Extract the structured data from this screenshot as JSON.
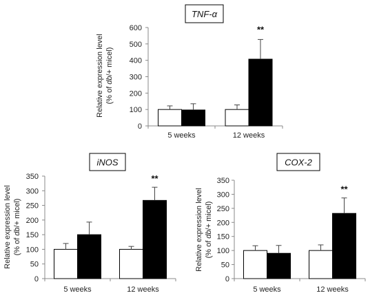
{
  "chart_data": [
    {
      "type": "bar",
      "title": "TNF-α",
      "ylabel_line1": "Relative expression level",
      "ylabel_line2_pre": "(% of ",
      "ylabel_line2_em": "db",
      "ylabel_line2_post": "/+ micel)",
      "ylim": [
        0,
        600
      ],
      "yticks": [
        "0",
        "100",
        "200",
        "300",
        "400",
        "500",
        "600"
      ],
      "categories": [
        "5 weeks",
        "12 weeks"
      ],
      "series": [
        {
          "fill": "#ffffff",
          "values": [
            100,
            100
          ],
          "errors": [
            22,
            28
          ]
        },
        {
          "fill": "#000000",
          "values": [
            97,
            407
          ],
          "errors": [
            38,
            120
          ]
        }
      ],
      "significance": [
        {
          "category": 1,
          "series": 1,
          "label": "**"
        }
      ]
    },
    {
      "type": "bar",
      "title": "iNOS",
      "ylabel_line1": "Relative expression level",
      "ylabel_line2_pre": "(% of ",
      "ylabel_line2_em": "db",
      "ylabel_line2_post": "/+ micel)",
      "ylim": [
        0,
        350
      ],
      "yticks": [
        "0",
        "50",
        "100",
        "150",
        "200",
        "250",
        "300",
        "350"
      ],
      "categories": [
        "5 weeks",
        "12 weeks"
      ],
      "series": [
        {
          "fill": "#ffffff",
          "values": [
            100,
            100
          ],
          "errors": [
            20,
            10
          ]
        },
        {
          "fill": "#000000",
          "values": [
            150,
            267
          ],
          "errors": [
            43,
            45
          ]
        }
      ],
      "significance": [
        {
          "category": 1,
          "series": 1,
          "label": "**"
        }
      ]
    },
    {
      "type": "bar",
      "title": "COX-2",
      "ylabel_line1": "Relative expression level",
      "ylabel_line2_pre": "(% of ",
      "ylabel_line2_em": "db",
      "ylabel_line2_post": "/+ micel)",
      "ylim": [
        0,
        350
      ],
      "yticks": [
        "0",
        "50",
        "100",
        "150",
        "200",
        "250",
        "300",
        "350"
      ],
      "categories": [
        "5 weeks",
        "12 weeks"
      ],
      "series": [
        {
          "fill": "#ffffff",
          "values": [
            100,
            100
          ],
          "errors": [
            17,
            20
          ]
        },
        {
          "fill": "#000000",
          "values": [
            90,
            232
          ],
          "errors": [
            28,
            55
          ]
        }
      ],
      "significance": [
        {
          "category": 1,
          "series": 1,
          "label": "**"
        }
      ]
    }
  ]
}
